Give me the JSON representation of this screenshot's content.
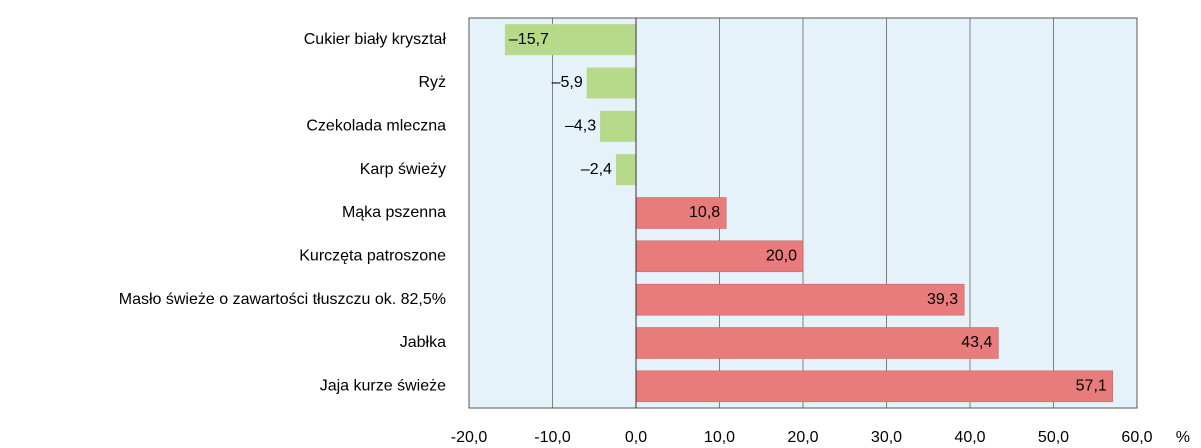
{
  "chart_data": {
    "type": "hbar",
    "categories": [
      "Cukier biały kryształ",
      "Ryż",
      "Czekolada mleczna",
      "Karp świeży",
      "Mąka pszenna",
      "Kurczęta patroszone",
      "Masło świeże o zawartości tłuszczu ok. 82,5%",
      "Jabłka",
      "Jaja kurze świeże"
    ],
    "values": [
      -15.7,
      -5.9,
      -4.3,
      -2.4,
      10.8,
      20.0,
      39.3,
      43.4,
      57.1
    ],
    "value_labels": [
      "–15,7",
      "–5,9",
      "–4,3",
      "–2,4",
      "10,8",
      "20,0",
      "39,3",
      "43,4",
      "57,1"
    ],
    "color": "#e87b7b",
    "negative_color": "#b6da8a",
    "xlim": [
      -20,
      60
    ],
    "xticks": [
      {
        "value": -20,
        "label": "-20,0"
      },
      {
        "value": -10,
        "label": "-10,0"
      },
      {
        "value": 0,
        "label": "0,0"
      },
      {
        "value": 10,
        "label": "10,0"
      },
      {
        "value": 20,
        "label": "20,0"
      },
      {
        "value": 30,
        "label": "30,0"
      },
      {
        "value": 40,
        "label": "40,0"
      },
      {
        "value": 50,
        "label": "50,0"
      },
      {
        "value": 60,
        "label": "60,0"
      }
    ],
    "x_label": "%",
    "grid": true
  }
}
